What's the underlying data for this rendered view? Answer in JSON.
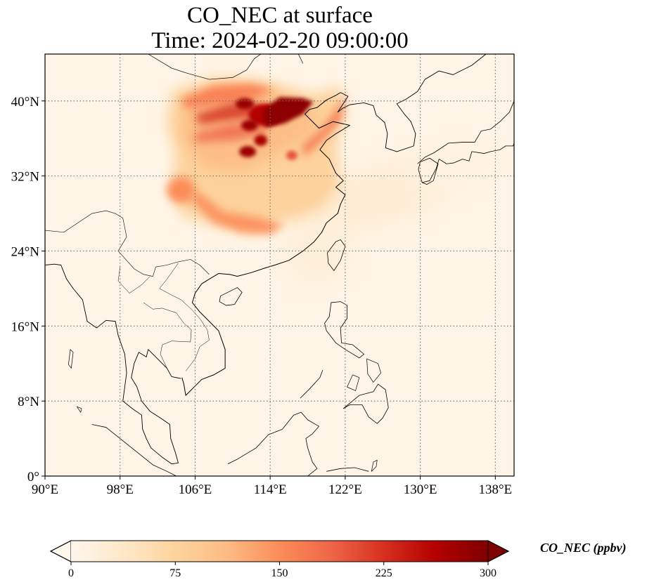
{
  "chart_data": {
    "type": "heatmap",
    "title": "CO_NEC at surface",
    "subtitle": "Time: 2024-02-20 09:00:00",
    "variable": "CO_NEC",
    "units": "ppbv",
    "colorbar_label": "CO_NEC (ppbv)",
    "colormap": "OrRd",
    "colorbar_range": [
      0,
      300
    ],
    "colorbar_extend": "both",
    "colorbar_ticks": [
      0,
      75,
      150,
      225,
      300
    ],
    "colorbar_tick_labels": [
      "0",
      "75",
      "150",
      "225",
      "300"
    ],
    "colormap_stops": [
      "#fff7ec",
      "#fee8c8",
      "#fdd49e",
      "#fdbb84",
      "#fc8d59",
      "#ef6548",
      "#d7301f",
      "#b30000",
      "#7f0000"
    ],
    "lon_range": [
      90,
      140
    ],
    "lat_range": [
      0,
      45
    ],
    "xticks": [
      90,
      98,
      106,
      114,
      122,
      130,
      138
    ],
    "xtick_labels": [
      "90°E",
      "98°E",
      "106°E",
      "114°E",
      "122°E",
      "130°E",
      "138°E"
    ],
    "yticks": [
      0,
      8,
      16,
      24,
      32,
      40
    ],
    "ytick_labels": [
      "0°",
      "8°N",
      "16°N",
      "24°N",
      "32°N",
      "40°N"
    ],
    "gridlines": "dotted",
    "background_value_ppbv": 5,
    "plume_regions": [
      {
        "name": "North China Plain / Beijing-Tianjin-Hebei core",
        "lon": 116.5,
        "lat": 39.5,
        "value_ppbv": 290
      },
      {
        "name": "Hebei / Shanxi hotspots",
        "lon": 113.5,
        "lat": 38.5,
        "value_ppbv": 260
      },
      {
        "name": "Central plains streaks",
        "lon": 111.5,
        "lat": 37.0,
        "value_ppbv": 230
      },
      {
        "name": "Shandong peninsula",
        "lon": 119.5,
        "lat": 36.5,
        "value_ppbv": 170
      },
      {
        "name": "Inner Mongolia south edge",
        "lon": 108.5,
        "lat": 40.0,
        "value_ppbv": 160
      },
      {
        "name": "Sichuan basin edge",
        "lon": 104.5,
        "lat": 30.5,
        "value_ppbv": 150
      },
      {
        "name": "Central China broad plume",
        "lon": 110.0,
        "lat": 32.0,
        "value_ppbv": 80
      },
      {
        "name": "Southern plume edge (Hunan/Guangxi)",
        "lon": 112.0,
        "lat": 26.5,
        "value_ppbv": 150
      },
      {
        "name": "Yellow Sea outflow",
        "lon": 126.0,
        "lat": 30.0,
        "value_ppbv": 25
      },
      {
        "name": "Japan south outflow",
        "lon": 134.0,
        "lat": 33.0,
        "value_ppbv": 12
      }
    ]
  }
}
